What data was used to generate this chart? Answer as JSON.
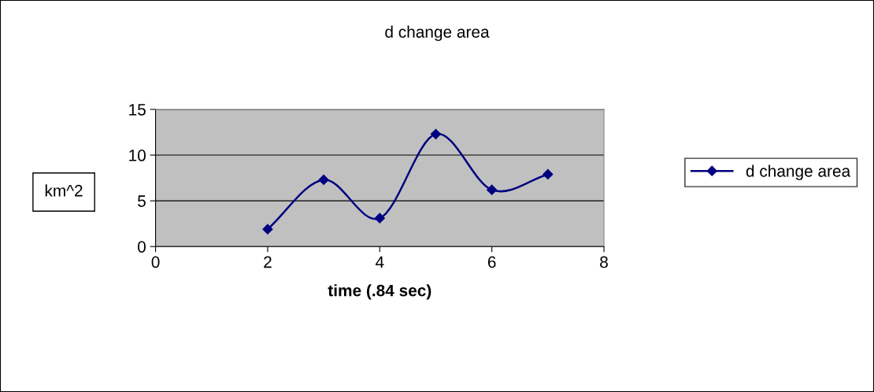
{
  "chart_data": {
    "type": "line",
    "title": "d change area",
    "xlabel": "time (.84 sec)",
    "ylabel": "km^2",
    "series": [
      {
        "name": "d change area",
        "color": "#000080",
        "x": [
          2,
          3,
          4,
          5,
          6,
          7
        ],
        "values": [
          1.9,
          7.3,
          3.1,
          12.3,
          6.2,
          7.9
        ]
      }
    ],
    "xlim": [
      0,
      8
    ],
    "xticks": [
      0,
      2,
      4,
      6,
      8
    ],
    "ylim": [
      0,
      15
    ],
    "yticks": [
      0,
      5,
      10,
      15
    ],
    "grid": "y",
    "legend": "right",
    "marker": "diamond",
    "line_style": "solid"
  }
}
